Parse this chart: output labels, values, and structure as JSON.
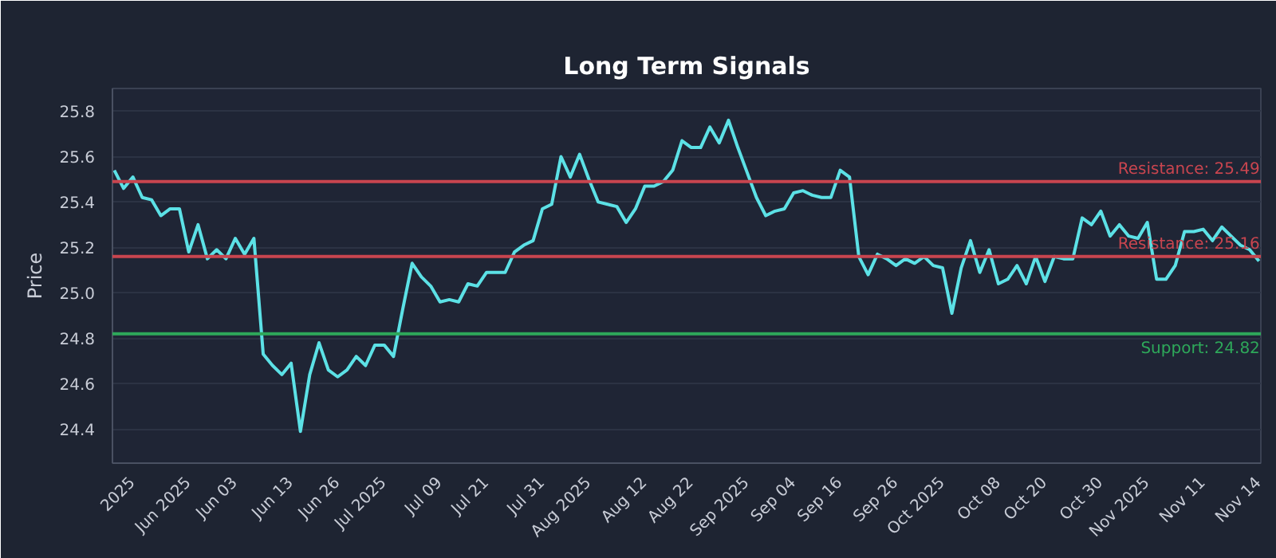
{
  "chart_data": {
    "type": "line",
    "title": "Long Term Signals",
    "ylabel": "Price",
    "categories": [
      null,
      null,
      "2025",
      null,
      null,
      null,
      null,
      null,
      "Jun 2025",
      null,
      null,
      null,
      null,
      "Jun 03",
      null,
      null,
      null,
      null,
      null,
      "Jun 13",
      null,
      null,
      null,
      null,
      "Jun 26",
      null,
      null,
      null,
      null,
      "Jul 2025",
      null,
      null,
      null,
      null,
      null,
      "Jul 09",
      null,
      null,
      null,
      null,
      "Jul 21",
      null,
      null,
      null,
      null,
      null,
      "Jul 31",
      null,
      null,
      null,
      null,
      "Aug 2025",
      null,
      null,
      null,
      null,
      null,
      "Aug 12",
      null,
      null,
      null,
      null,
      "Aug 22",
      null,
      null,
      null,
      null,
      null,
      "Sep 2025",
      null,
      null,
      null,
      null,
      "Sep 04",
      null,
      null,
      null,
      null,
      "Sep 16",
      null,
      null,
      null,
      null,
      null,
      "Sep 26",
      null,
      null,
      null,
      null,
      "Oct 2025",
      null,
      null,
      null,
      null,
      null,
      "Oct 08",
      null,
      null,
      null,
      null,
      "Oct 20",
      null,
      null,
      null,
      null,
      null,
      "Oct 30",
      null,
      null,
      null,
      null,
      "Nov 2025",
      null,
      null,
      null,
      null,
      null,
      "Nov 11",
      null,
      null,
      null,
      null,
      null,
      "Nov 14"
    ],
    "series": [
      {
        "color": "#5ce1e6",
        "values": [
          25.54,
          25.46,
          25.51,
          25.42,
          25.41,
          25.34,
          25.37,
          25.37,
          25.18,
          25.3,
          25.15,
          25.19,
          25.15,
          25.24,
          25.17,
          25.24,
          24.73,
          24.68,
          24.64,
          24.69,
          24.39,
          24.64,
          24.78,
          24.66,
          24.63,
          24.66,
          24.72,
          24.68,
          24.77,
          24.77,
          24.72,
          24.93,
          25.13,
          25.07,
          25.03,
          24.96,
          24.97,
          24.96,
          25.04,
          25.03,
          25.09,
          25.09,
          25.09,
          25.18,
          25.21,
          25.23,
          25.37,
          25.39,
          25.6,
          25.51,
          25.61,
          25.5,
          25.4,
          25.39,
          25.38,
          25.31,
          25.37,
          25.47,
          25.47,
          25.49,
          25.54,
          25.67,
          25.64,
          25.64,
          25.73,
          25.66,
          25.76,
          25.64,
          25.53,
          25.42,
          25.34,
          25.36,
          25.37,
          25.44,
          25.45,
          25.43,
          25.42,
          25.42,
          25.54,
          25.51,
          25.16,
          25.08,
          25.17,
          25.15,
          25.12,
          25.15,
          25.13,
          25.16,
          25.12,
          25.11,
          24.91,
          25.11,
          25.23,
          25.09,
          25.19,
          25.04,
          25.06,
          25.12,
          25.04,
          25.16,
          25.05,
          25.16,
          25.15,
          25.15,
          25.33,
          25.3,
          25.36,
          25.25,
          25.3,
          25.25,
          25.24,
          25.31,
          25.06,
          25.06,
          25.12,
          25.27,
          25.27,
          25.28,
          25.23,
          25.29,
          25.25,
          25.21,
          25.19,
          25.14
        ]
      }
    ],
    "ylim": [
      24.25,
      25.9
    ],
    "yticks": [
      24.4,
      24.6,
      24.8,
      {
        "value": 25,
        "label": "25.0"
      },
      25.2,
      25.4,
      25.6,
      25.8
    ],
    "grid": "y",
    "line_style": "solid",
    "ref_lines": [
      {
        "axis": "y",
        "value": 25.49,
        "label": "Resistance: 25.49",
        "color": "#c8454f"
      },
      {
        "axis": "y",
        "value": 25.16,
        "label": "Resistance: 25.16",
        "color": "#c8454f"
      },
      {
        "axis": "y",
        "value": 24.82,
        "label": "Support: 24.82",
        "color": "#2ea85a"
      }
    ]
  }
}
